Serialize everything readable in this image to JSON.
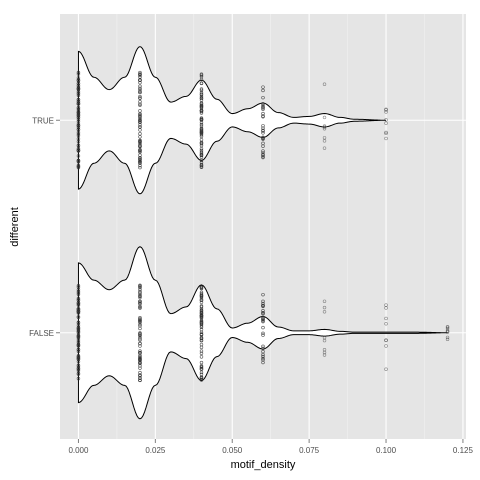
{
  "chart_data": {
    "type": "violin",
    "xlabel": "motif_density",
    "ylabel": "different",
    "xlim": [
      -0.006,
      0.126
    ],
    "x_ticks": [
      0.0,
      0.025,
      0.05,
      0.075,
      0.1,
      0.125
    ],
    "x_tick_labels": [
      "0.000",
      "0.025",
      "0.050",
      "0.075",
      "0.100",
      "0.125"
    ],
    "categories": [
      "TRUE",
      "FALSE"
    ],
    "grid": true,
    "panel_background": "#e5e5e5",
    "grid_color": "#ffffff",
    "violin_fill": "#ffffff",
    "violin_line": "#000000",
    "point_color": "#333333",
    "series": [
      {
        "name": "TRUE",
        "x_range": [
          0.0,
          0.1
        ],
        "density_profile": [
          {
            "x": 0.0,
            "half_width": 0.72
          },
          {
            "x": 0.005,
            "half_width": 0.45
          },
          {
            "x": 0.01,
            "half_width": 0.32
          },
          {
            "x": 0.015,
            "half_width": 0.45
          },
          {
            "x": 0.02,
            "half_width": 0.77
          },
          {
            "x": 0.025,
            "half_width": 0.45
          },
          {
            "x": 0.03,
            "half_width": 0.19
          },
          {
            "x": 0.035,
            "half_width": 0.25
          },
          {
            "x": 0.04,
            "half_width": 0.42
          },
          {
            "x": 0.045,
            "half_width": 0.22
          },
          {
            "x": 0.05,
            "half_width": 0.07
          },
          {
            "x": 0.055,
            "half_width": 0.12
          },
          {
            "x": 0.06,
            "half_width": 0.18
          },
          {
            "x": 0.065,
            "half_width": 0.08
          },
          {
            "x": 0.07,
            "half_width": 0.03
          },
          {
            "x": 0.075,
            "half_width": 0.04
          },
          {
            "x": 0.08,
            "half_width": 0.07
          },
          {
            "x": 0.085,
            "half_width": 0.03
          },
          {
            "x": 0.09,
            "half_width": 0.01
          },
          {
            "x": 0.1,
            "half_width": 0.0
          }
        ],
        "points": [
          {
            "x": 0.0,
            "spread": 0.5
          },
          {
            "x": 0.02,
            "spread": 0.5
          },
          {
            "x": 0.04,
            "spread": 0.5
          },
          {
            "x": 0.06,
            "spread": 0.43
          },
          {
            "x": 0.08,
            "spread": 0.4
          },
          {
            "x": 0.1,
            "spread": 0.2
          }
        ]
      },
      {
        "name": "FALSE",
        "x_range": [
          0.0,
          0.12
        ],
        "density_profile": [
          {
            "x": 0.0,
            "half_width": 0.73
          },
          {
            "x": 0.005,
            "half_width": 0.55
          },
          {
            "x": 0.01,
            "half_width": 0.45
          },
          {
            "x": 0.015,
            "half_width": 0.55
          },
          {
            "x": 0.02,
            "half_width": 0.9
          },
          {
            "x": 0.025,
            "half_width": 0.55
          },
          {
            "x": 0.03,
            "half_width": 0.2
          },
          {
            "x": 0.035,
            "half_width": 0.27
          },
          {
            "x": 0.04,
            "half_width": 0.5
          },
          {
            "x": 0.045,
            "half_width": 0.25
          },
          {
            "x": 0.05,
            "half_width": 0.05
          },
          {
            "x": 0.055,
            "half_width": 0.1
          },
          {
            "x": 0.06,
            "half_width": 0.17
          },
          {
            "x": 0.065,
            "half_width": 0.06
          },
          {
            "x": 0.07,
            "half_width": 0.02
          },
          {
            "x": 0.075,
            "half_width": 0.02
          },
          {
            "x": 0.08,
            "half_width": 0.035
          },
          {
            "x": 0.085,
            "half_width": 0.015
          },
          {
            "x": 0.09,
            "half_width": 0.006
          },
          {
            "x": 0.1,
            "half_width": 0.006
          },
          {
            "x": 0.11,
            "half_width": 0.006
          },
          {
            "x": 0.12,
            "half_width": 0.0
          }
        ],
        "points": [
          {
            "x": 0.0,
            "spread": 0.5
          },
          {
            "x": 0.02,
            "spread": 0.5
          },
          {
            "x": 0.04,
            "spread": 0.5
          },
          {
            "x": 0.06,
            "spread": 0.4
          },
          {
            "x": 0.08,
            "spread": 0.4
          },
          {
            "x": 0.1,
            "spread": 0.4
          },
          {
            "x": 0.12,
            "spread": 0.08
          }
        ]
      }
    ]
  }
}
